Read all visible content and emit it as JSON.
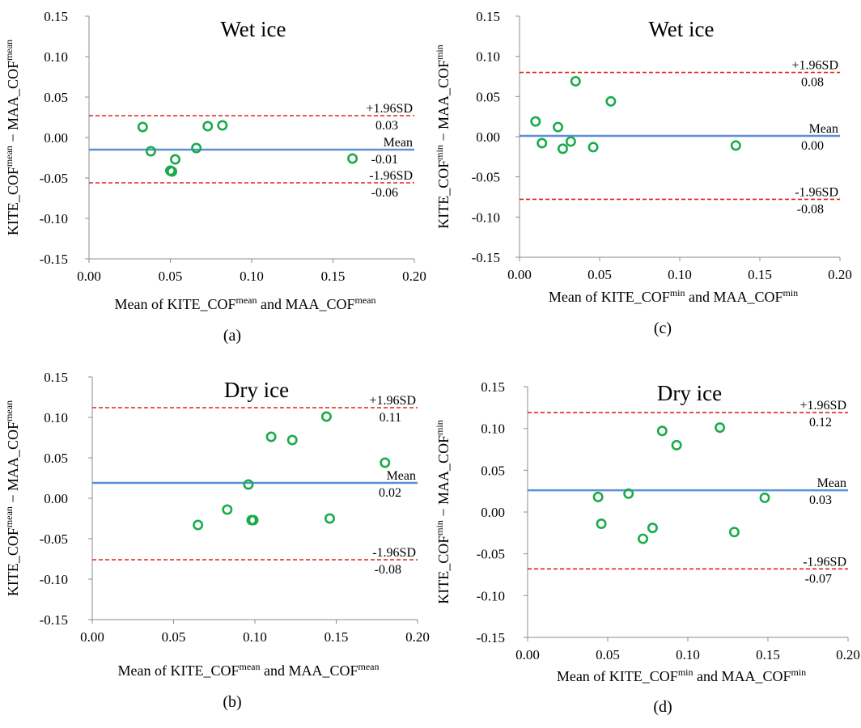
{
  "chart_data": [
    {
      "type": "scatter",
      "panel_label": "(a)",
      "title": "Wet ice",
      "xlabel": {
        "pre": "Mean of KITE_COF",
        "sup1": "mean",
        "mid": "  and MAA_COF",
        "sup2": "mean"
      },
      "ylabel": {
        "a": "KITE_COF",
        "sa": "mean",
        "mid": " − MAA_COF",
        "sb": "mean"
      },
      "xlim": [
        0,
        0.2
      ],
      "ylim": [
        -0.15,
        0.15
      ],
      "xticks": [
        "0.00",
        "0.05",
        "0.10",
        "0.15",
        "0.20"
      ],
      "yticks": [
        "0.15",
        "0.10",
        "0.05",
        "0.00",
        "-0.05",
        "-0.10",
        "-0.15"
      ],
      "points": [
        [
          0.033,
          0.013
        ],
        [
          0.038,
          -0.017
        ],
        [
          0.05,
          -0.041
        ],
        [
          0.051,
          -0.042
        ],
        [
          0.053,
          -0.027
        ],
        [
          0.066,
          -0.013
        ],
        [
          0.073,
          0.014
        ],
        [
          0.082,
          0.015
        ],
        [
          0.162,
          -0.026
        ]
      ],
      "lines": {
        "upper": {
          "y": 0.027,
          "label": "+1.96SD",
          "value": "0.03"
        },
        "mean": {
          "y": -0.015,
          "label": "Mean",
          "value": "-0.01"
        },
        "lower": {
          "y": -0.056,
          "label": "-1.96SD",
          "value": "-0.06"
        }
      },
      "grid": false,
      "colors": {
        "points": "#1aab4b",
        "mean": "#5b8fd6",
        "limits": "#e0251b"
      }
    },
    {
      "type": "scatter",
      "panel_label": "(c)",
      "title": "Wet ice",
      "xlabel": {
        "pre": "Mean of KITE_COF",
        "sup1": "min",
        "mid": "  and MAA_COF",
        "sup2": "min"
      },
      "ylabel": {
        "a": "KITE_COF",
        "sa": "min",
        "mid": " − MAA_COF",
        "sb": "min"
      },
      "xlim": [
        0,
        0.2
      ],
      "ylim": [
        -0.15,
        0.15
      ],
      "xticks": [
        "0.00",
        "0.05",
        "0.10",
        "0.15",
        "0.20"
      ],
      "yticks": [
        "0.15",
        "0.10",
        "0.05",
        "0.00",
        "-0.05",
        "-0.10",
        "-0.15"
      ],
      "points": [
        [
          0.01,
          0.019
        ],
        [
          0.014,
          -0.008
        ],
        [
          0.024,
          0.012
        ],
        [
          0.027,
          -0.015
        ],
        [
          0.032,
          -0.006
        ],
        [
          0.035,
          0.069
        ],
        [
          0.046,
          -0.013
        ],
        [
          0.057,
          0.044
        ],
        [
          0.135,
          -0.011
        ]
      ],
      "lines": {
        "upper": {
          "y": 0.08,
          "label": "+1.96SD",
          "value": "0.08"
        },
        "mean": {
          "y": 0.001,
          "label": "Mean",
          "value": "0.00"
        },
        "lower": {
          "y": -0.078,
          "label": "-1.96SD",
          "value": "-0.08"
        }
      },
      "grid": false,
      "colors": {
        "points": "#1aab4b",
        "mean": "#5b8fd6",
        "limits": "#e0251b"
      }
    },
    {
      "type": "scatter",
      "panel_label": "(b)",
      "title": "Dry ice",
      "xlabel": {
        "pre": "Mean of KITE_COF",
        "sup1": "mean",
        "mid": "  and MAA_COF",
        "sup2": "mean"
      },
      "ylabel": {
        "a": "KITE_COF",
        "sa": "mean",
        "mid": " − MAA_COF",
        "sb": "mean"
      },
      "xlim": [
        0,
        0.2
      ],
      "ylim": [
        -0.15,
        0.15
      ],
      "xticks": [
        "0.00",
        "0.05",
        "0.10",
        "0.15",
        "0.20"
      ],
      "yticks": [
        "0.15",
        "0.10",
        "0.05",
        "0.00",
        "-0.05",
        "-0.10",
        "-0.15"
      ],
      "points": [
        [
          0.065,
          -0.033
        ],
        [
          0.083,
          -0.014
        ],
        [
          0.096,
          0.017
        ],
        [
          0.098,
          -0.027
        ],
        [
          0.099,
          -0.027
        ],
        [
          0.11,
          0.076
        ],
        [
          0.123,
          0.072
        ],
        [
          0.144,
          0.101
        ],
        [
          0.146,
          -0.025
        ],
        [
          0.18,
          0.044
        ]
      ],
      "lines": {
        "upper": {
          "y": 0.112,
          "label": "+1.96SD",
          "value": "0.11"
        },
        "mean": {
          "y": 0.019,
          "label": "Mean",
          "value": "0.02"
        },
        "lower": {
          "y": -0.076,
          "label": "-1.96SD",
          "value": "-0.08"
        }
      },
      "grid": false,
      "colors": {
        "points": "#1aab4b",
        "mean": "#5b8fd6",
        "limits": "#e0251b"
      }
    },
    {
      "type": "scatter",
      "panel_label": "(d)",
      "title": "Dry ice",
      "xlabel": {
        "pre": "Mean of KITE_COF",
        "sup1": "min",
        "mid": "  and MAA_COF",
        "sup2": "min"
      },
      "ylabel": {
        "a": "KITE_COF",
        "sa": "min",
        "mid": " − MAA_COF",
        "sb": "min"
      },
      "xlim": [
        0,
        0.2
      ],
      "ylim": [
        -0.15,
        0.15
      ],
      "xticks": [
        "0.00",
        "0.05",
        "0.10",
        "0.15",
        "0.20"
      ],
      "yticks": [
        "0.15",
        "0.10",
        "0.05",
        "0.00",
        "-0.05",
        "-0.10",
        "-0.15"
      ],
      "points": [
        [
          0.044,
          0.018
        ],
        [
          0.046,
          -0.014
        ],
        [
          0.063,
          0.022
        ],
        [
          0.072,
          -0.032
        ],
        [
          0.078,
          -0.019
        ],
        [
          0.084,
          0.097
        ],
        [
          0.093,
          0.08
        ],
        [
          0.12,
          0.101
        ],
        [
          0.129,
          -0.024
        ],
        [
          0.148,
          0.017
        ]
      ],
      "lines": {
        "upper": {
          "y": 0.119,
          "label": "+1.96SD",
          "value": "0.12"
        },
        "mean": {
          "y": 0.026,
          "label": "Mean",
          "value": "0.03"
        },
        "lower": {
          "y": -0.068,
          "label": "-1.96SD",
          "value": "-0.07"
        }
      },
      "grid": false,
      "colors": {
        "points": "#1aab4b",
        "mean": "#5b8fd6",
        "limits": "#e0251b"
      }
    }
  ]
}
